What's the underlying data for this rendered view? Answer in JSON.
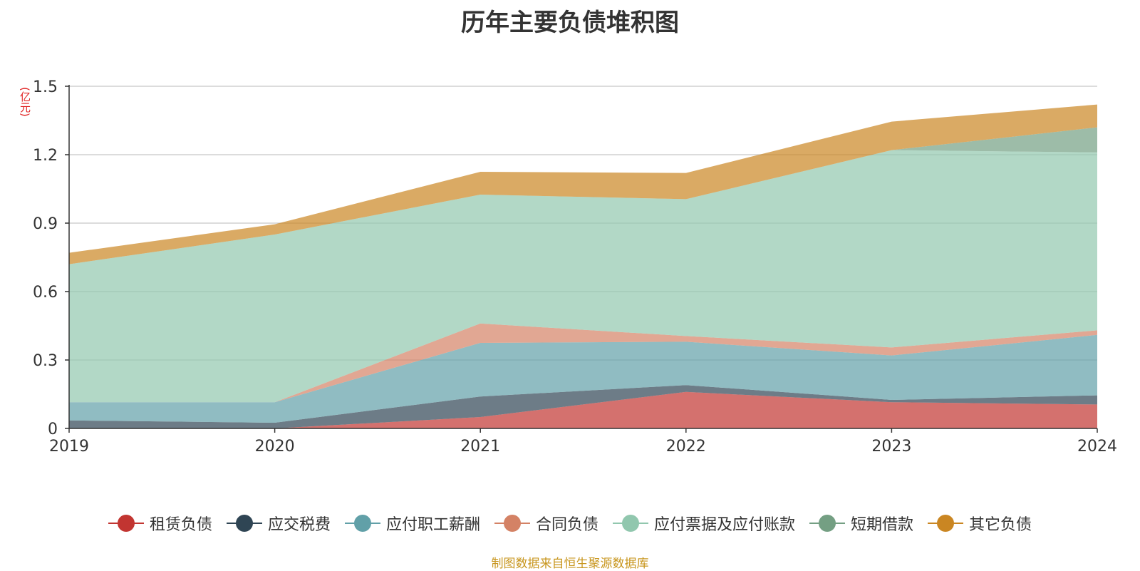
{
  "title": "历年主要负债堆积图",
  "y_unit": "(亿元)",
  "source_note": "制图数据来自恒生聚源数据库",
  "chart_data": {
    "type": "area",
    "stacked": true,
    "title": "历年主要负债堆积图",
    "ylabel": "(亿元)",
    "x": [
      "2019",
      "2020",
      "2021",
      "2022",
      "2023",
      "2024"
    ],
    "ylim": [
      0,
      1.5
    ],
    "yticks": [
      "0",
      "0.3",
      "0.6",
      "0.9",
      "1.2",
      "1.5"
    ],
    "grid": true,
    "legend_position": "bottom",
    "series": [
      {
        "name": "租赁负债",
        "color": "#c23531",
        "values": [
          0,
          0,
          0.05,
          0.16,
          0.115,
          0.105
        ]
      },
      {
        "name": "应交税费",
        "color": "#2f4554",
        "values": [
          0.035,
          0.025,
          0.09,
          0.03,
          0.01,
          0.04
        ]
      },
      {
        "name": "应付职工薪酬",
        "color": "#61a0a8",
        "values": [
          0.08,
          0.09,
          0.235,
          0.19,
          0.195,
          0.265
        ]
      },
      {
        "name": "合同负债",
        "color": "#d48265",
        "values": [
          0,
          0,
          0.085,
          0.025,
          0.035,
          0.02
        ]
      },
      {
        "name": "应付票据及应付账款",
        "color": "#91c7ae",
        "values": [
          0.605,
          0.735,
          0.565,
          0.6,
          0.865,
          0.78
        ]
      },
      {
        "name": "短期借款",
        "color": "#749f83",
        "values": [
          0,
          0,
          0,
          0,
          0,
          0.11
        ]
      },
      {
        "name": "其它负债",
        "color": "#ca8622",
        "values": [
          0.05,
          0.045,
          0.1,
          0.115,
          0.125,
          0.1
        ]
      }
    ]
  }
}
